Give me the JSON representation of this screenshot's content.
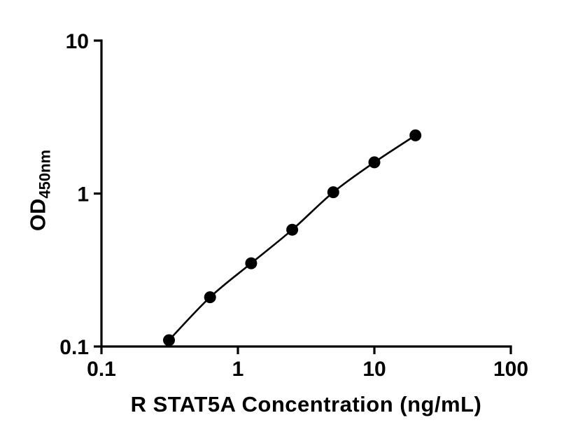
{
  "chart_data": {
    "type": "scatter",
    "title": "",
    "xlabel": "R STAT5A Concentration (ng/mL)",
    "ylabel_main": "OD",
    "ylabel_sub": "450nm",
    "xscale": "log",
    "yscale": "log",
    "xlim": [
      0.1,
      100
    ],
    "ylim": [
      0.1,
      10
    ],
    "x_ticks": [
      "0.1",
      "1",
      "10",
      "100"
    ],
    "y_ticks": [
      "0.1",
      "1",
      "10"
    ],
    "grid": false,
    "legend": false,
    "x": [
      0.3125,
      0.625,
      1.25,
      2.5,
      5,
      10,
      20
    ],
    "y": [
      0.11,
      0.21,
      0.35,
      0.58,
      1.02,
      1.6,
      2.4
    ],
    "line_color": "#000000",
    "marker_color": "#000000",
    "axis_color": "#000000"
  }
}
